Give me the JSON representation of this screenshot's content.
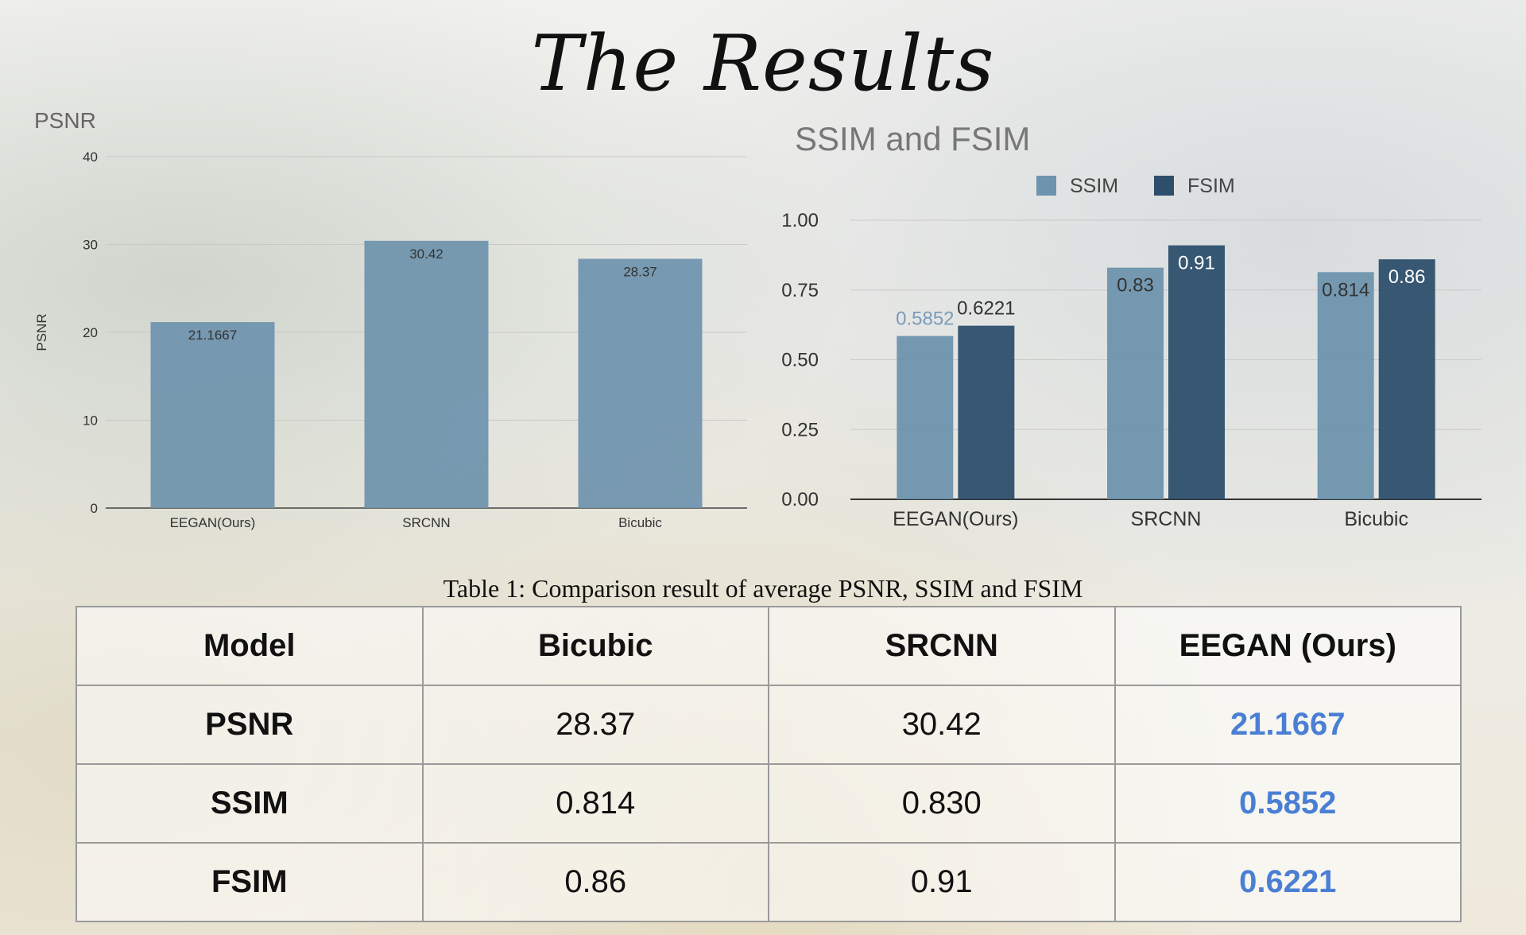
{
  "slide_title": "The Results",
  "table": {
    "caption": "Table 1: Comparison result of average PSNR, SSIM and FSIM",
    "headers": [
      "Model",
      "Bicubic",
      "SRCNN",
      "EEGAN (Ours)"
    ],
    "rows": [
      {
        "metric": "PSNR",
        "bicubic": "28.37",
        "srcnn": "30.42",
        "eegan": "21.1667"
      },
      {
        "metric": "SSIM",
        "bicubic": "0.814",
        "srcnn": "0.830",
        "eegan": "0.5852"
      },
      {
        "metric": "FSIM",
        "bicubic": "0.86",
        "srcnn": "0.91",
        "eegan": "0.6221"
      }
    ],
    "highlight_color": "#4a7fd4"
  },
  "chart_data": [
    {
      "type": "bar",
      "title": "PSNR",
      "xlabel": "",
      "ylabel": "PSNR",
      "categories": [
        "EEGAN(Ours)",
        "SRCNN",
        "Bicubic"
      ],
      "values": [
        21.1667,
        30.42,
        28.37
      ],
      "value_labels": [
        "21.1667",
        "30.42",
        "28.37"
      ],
      "ylim": [
        0,
        40
      ],
      "yticks": [
        0,
        10,
        20,
        30,
        40
      ],
      "grid": true,
      "legend": "none",
      "color": "#6e93ad"
    },
    {
      "type": "bar",
      "title": "SSIM and FSIM",
      "xlabel": "",
      "ylabel": "",
      "categories": [
        "EEGAN(Ours)",
        "SRCNN",
        "Bicubic"
      ],
      "series": [
        {
          "name": "SSIM",
          "values": [
            0.5852,
            0.83,
            0.814
          ],
          "labels": [
            "0.5852",
            "0.83",
            "0.814"
          ],
          "color": "#6e93ad"
        },
        {
          "name": "FSIM",
          "values": [
            0.6221,
            0.91,
            0.86
          ],
          "labels": [
            "0.6221",
            "0.91",
            "0.86"
          ],
          "color": "#2d4f6b"
        }
      ],
      "ylim": [
        0,
        1
      ],
      "yticks": [
        "0.00",
        "0.25",
        "0.50",
        "0.75",
        "1.00"
      ],
      "grid": true,
      "legend": "top-center"
    }
  ]
}
